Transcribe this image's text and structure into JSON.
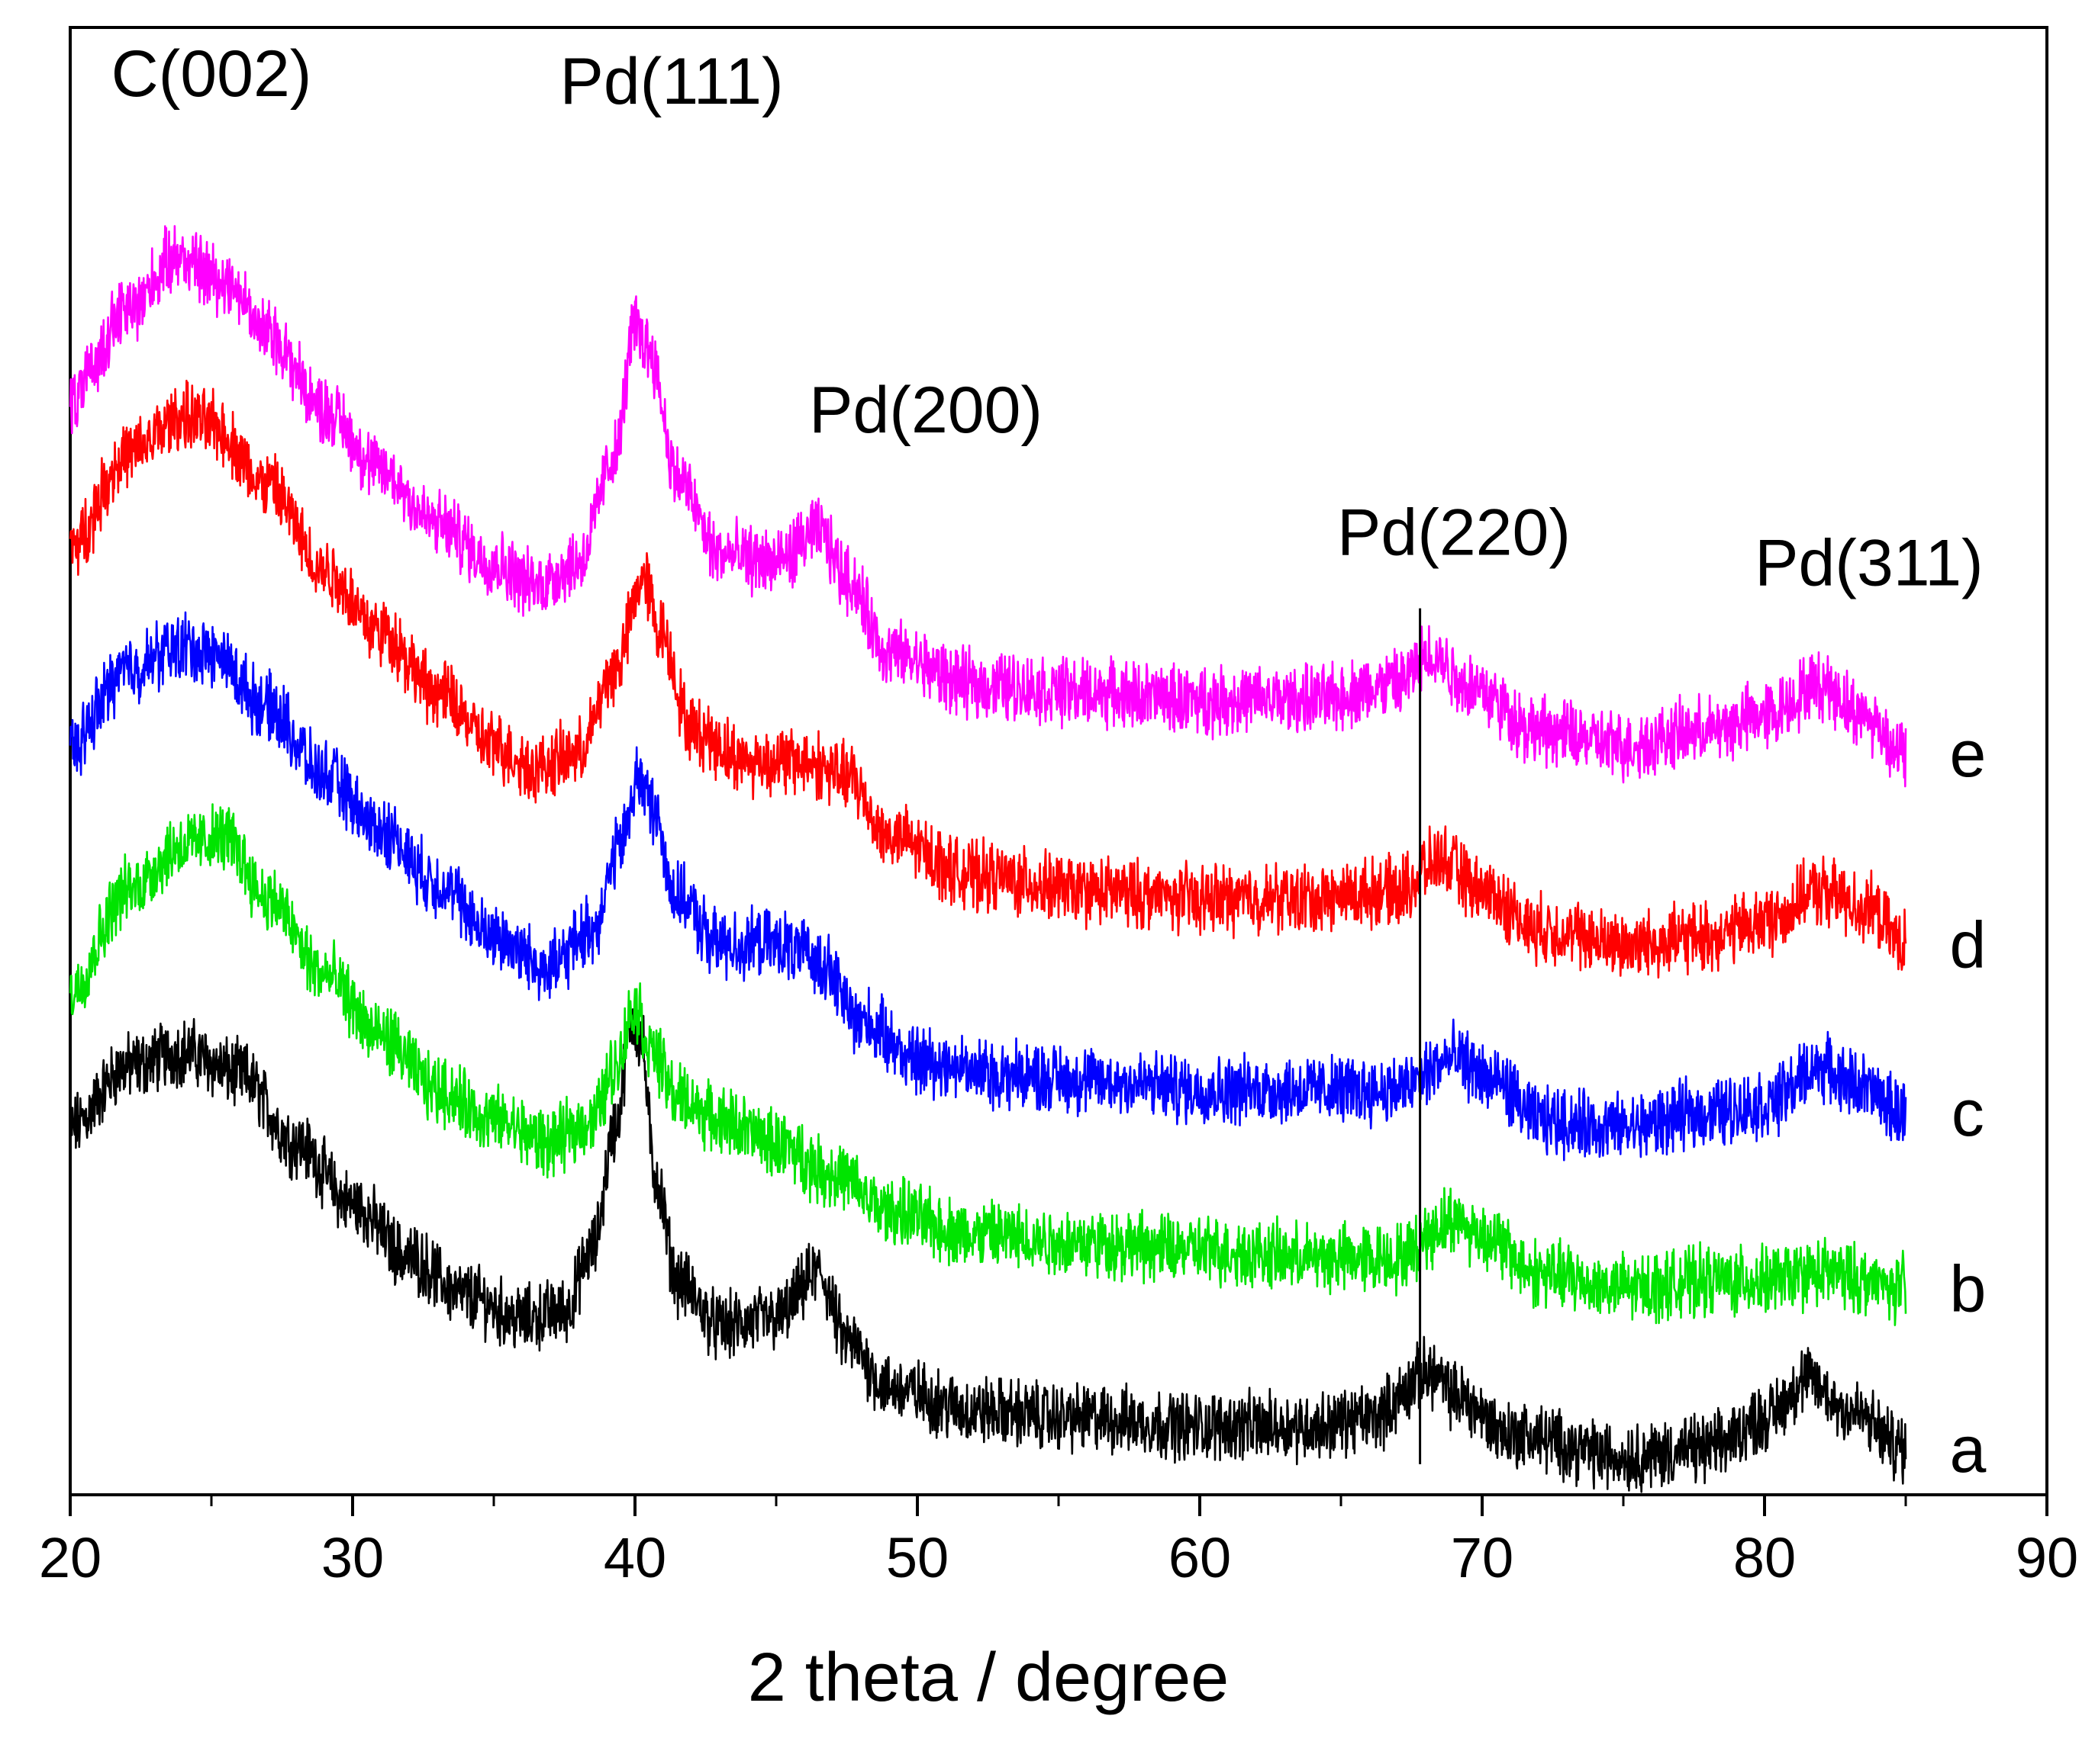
{
  "chart_data": {
    "type": "line",
    "title": "",
    "xlabel": "2 theta / degree",
    "ylabel": "",
    "xlim": [
      20,
      90
    ],
    "x_ticks": [
      20,
      30,
      40,
      50,
      60,
      70,
      80,
      90
    ],
    "y_axis_ticks": false,
    "x_range_data": [
      20,
      85
    ],
    "series": [
      {
        "name": "a",
        "color": "#000000",
        "points": [
          [
            20,
            0.48
          ],
          [
            22,
            0.56
          ],
          [
            24,
            0.58
          ],
          [
            26,
            0.55
          ],
          [
            28,
            0.46
          ],
          [
            30,
            0.38
          ],
          [
            32,
            0.31
          ],
          [
            34,
            0.26
          ],
          [
            36,
            0.23
          ],
          [
            37.5,
            0.24
          ],
          [
            38.5,
            0.32
          ],
          [
            39.3,
            0.48
          ],
          [
            39.9,
            0.62
          ],
          [
            40.2,
            0.6
          ],
          [
            40.7,
            0.42
          ],
          [
            41.5,
            0.28
          ],
          [
            43,
            0.22
          ],
          [
            45,
            0.23
          ],
          [
            46.5,
            0.29
          ],
          [
            47.5,
            0.2
          ],
          [
            49,
            0.14
          ],
          [
            52,
            0.11
          ],
          [
            56,
            0.1
          ],
          [
            60,
            0.09
          ],
          [
            64,
            0.09
          ],
          [
            66,
            0.1
          ],
          [
            68.2,
            0.16
          ],
          [
            69,
            0.13
          ],
          [
            71,
            0.08
          ],
          [
            75,
            0.05
          ],
          [
            78,
            0.06
          ],
          [
            80,
            0.1
          ],
          [
            81.5,
            0.15
          ],
          [
            83,
            0.11
          ],
          [
            85,
            0.06
          ]
        ]
      },
      {
        "name": "b",
        "color": "#00e400",
        "points": [
          [
            20,
            0.66
          ],
          [
            22,
            0.79
          ],
          [
            24,
            0.85
          ],
          [
            25.5,
            0.86
          ],
          [
            27,
            0.78
          ],
          [
            29,
            0.68
          ],
          [
            31,
            0.6
          ],
          [
            33,
            0.53
          ],
          [
            35,
            0.49
          ],
          [
            37,
            0.46
          ],
          [
            38.5,
            0.49
          ],
          [
            39.3,
            0.56
          ],
          [
            40,
            0.64
          ],
          [
            40.6,
            0.58
          ],
          [
            41.5,
            0.52
          ],
          [
            43,
            0.49
          ],
          [
            45,
            0.46
          ],
          [
            47,
            0.42
          ],
          [
            49,
            0.37
          ],
          [
            52,
            0.34
          ],
          [
            56,
            0.33
          ],
          [
            60,
            0.32
          ],
          [
            64,
            0.31
          ],
          [
            67,
            0.31
          ],
          [
            69,
            0.36
          ],
          [
            70,
            0.34
          ],
          [
            72,
            0.29
          ],
          [
            75,
            0.27
          ],
          [
            78,
            0.28
          ],
          [
            80,
            0.28
          ],
          [
            82,
            0.29
          ],
          [
            85,
            0.27
          ]
        ]
      },
      {
        "name": "c",
        "color": "#0000ff",
        "points": [
          [
            20,
            0.98
          ],
          [
            22,
            1.08
          ],
          [
            24,
            1.11
          ],
          [
            25,
            1.1
          ],
          [
            27,
            1.03
          ],
          [
            29,
            0.94
          ],
          [
            31,
            0.87
          ],
          [
            33,
            0.8
          ],
          [
            35,
            0.73
          ],
          [
            37,
            0.69
          ],
          [
            38.5,
            0.74
          ],
          [
            39.5,
            0.85
          ],
          [
            40.1,
            0.94
          ],
          [
            40.6,
            0.9
          ],
          [
            41.5,
            0.78
          ],
          [
            43,
            0.72
          ],
          [
            45,
            0.72
          ],
          [
            46.5,
            0.7
          ],
          [
            48,
            0.62
          ],
          [
            50,
            0.57
          ],
          [
            53,
            0.55
          ],
          [
            57,
            0.54
          ],
          [
            60,
            0.53
          ],
          [
            64,
            0.53
          ],
          [
            67,
            0.53
          ],
          [
            69,
            0.57
          ],
          [
            70.5,
            0.54
          ],
          [
            72,
            0.49
          ],
          [
            75,
            0.48
          ],
          [
            78,
            0.5
          ],
          [
            80,
            0.51
          ],
          [
            82,
            0.56
          ],
          [
            83,
            0.54
          ],
          [
            85,
            0.5
          ]
        ]
      },
      {
        "name": "d",
        "color": "#ff0000",
        "points": [
          [
            20,
            1.24
          ],
          [
            22,
            1.36
          ],
          [
            24,
            1.41
          ],
          [
            25,
            1.4
          ],
          [
            27,
            1.32
          ],
          [
            29,
            1.21
          ],
          [
            31,
            1.13
          ],
          [
            33,
            1.05
          ],
          [
            35,
            0.98
          ],
          [
            36.5,
            0.95
          ],
          [
            38,
            0.97
          ],
          [
            39.3,
            1.08
          ],
          [
            40.3,
            1.2
          ],
          [
            40.9,
            1.13
          ],
          [
            42,
            1.0
          ],
          [
            44,
            0.96
          ],
          [
            46,
            0.96
          ],
          [
            47.5,
            0.94
          ],
          [
            49,
            0.86
          ],
          [
            52,
            0.81
          ],
          [
            56,
            0.79
          ],
          [
            60,
            0.78
          ],
          [
            64,
            0.78
          ],
          [
            67,
            0.79
          ],
          [
            68.5,
            0.83
          ],
          [
            70,
            0.79
          ],
          [
            72,
            0.74
          ],
          [
            75,
            0.72
          ],
          [
            78,
            0.73
          ],
          [
            80,
            0.75
          ],
          [
            82,
            0.79
          ],
          [
            83.5,
            0.77
          ],
          [
            85,
            0.72
          ]
        ]
      },
      {
        "name": "e",
        "color": "#ff00ff",
        "points": [
          [
            20,
            1.43
          ],
          [
            22,
            1.55
          ],
          [
            23.8,
            1.62
          ],
          [
            25.5,
            1.59
          ],
          [
            27,
            1.52
          ],
          [
            29,
            1.42
          ],
          [
            31,
            1.34
          ],
          [
            33,
            1.27
          ],
          [
            35,
            1.22
          ],
          [
            36.5,
            1.19
          ],
          [
            38,
            1.22
          ],
          [
            39.3,
            1.36
          ],
          [
            40,
            1.53
          ],
          [
            40.5,
            1.5
          ],
          [
            41.5,
            1.33
          ],
          [
            43,
            1.23
          ],
          [
            45,
            1.22
          ],
          [
            46.5,
            1.26
          ],
          [
            47.5,
            1.2
          ],
          [
            49,
            1.1
          ],
          [
            52,
            1.06
          ],
          [
            56,
            1.05
          ],
          [
            60,
            1.04
          ],
          [
            64,
            1.04
          ],
          [
            67,
            1.06
          ],
          [
            68.2,
            1.1
          ],
          [
            69.5,
            1.06
          ],
          [
            72,
            1.0
          ],
          [
            75,
            0.98
          ],
          [
            78,
            1.0
          ],
          [
            80,
            1.02
          ],
          [
            82,
            1.06
          ],
          [
            83.5,
            1.02
          ],
          [
            85,
            0.97
          ]
        ]
      }
    ],
    "annotations": [
      {
        "text": "C(002)",
        "x": 25,
        "y": 1.83
      },
      {
        "text": "Pd(111)",
        "x": 41.3,
        "y": 1.82
      },
      {
        "text": "Pd(200)",
        "x": 50.3,
        "y": 1.39
      },
      {
        "text": "Pd(220)",
        "x": 69,
        "y": 1.23
      },
      {
        "text": "Pd(311)",
        "x": 83.7,
        "y": 1.19
      }
    ],
    "reference_line": {
      "x": 67.8,
      "y_from": 0.04,
      "y_to": 1.16
    }
  }
}
